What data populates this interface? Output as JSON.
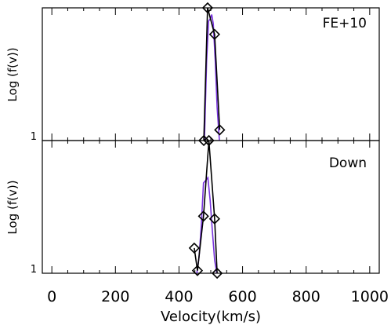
{
  "chart_data": [
    {
      "type": "line",
      "panel_label": "FE+10",
      "ylabel": "Log (f(v))",
      "y_tick_labels": [
        "1"
      ],
      "y_scale": "log",
      "xlim": [
        -30,
        1030
      ],
      "ylim_log10": [
        0,
        1
      ],
      "series": [
        {
          "color": "#7733dd",
          "x": [
            480,
            487,
            493,
            499,
            503,
            508,
            514,
            520,
            527
          ],
          "y_log10": [
            0,
            0.6,
            0.9,
            0.92,
            0.95,
            0.88,
            0.6,
            0.25,
            0
          ]
        },
        {
          "color": "#000000",
          "x": [
            478,
            490,
            512,
            528
          ],
          "y_log10": [
            0,
            1.0,
            0.8,
            0.08
          ],
          "markers": "diamond"
        }
      ]
    },
    {
      "type": "line",
      "panel_label": "Down",
      "ylabel": "Log (f(v))",
      "y_tick_labels": [
        "1"
      ],
      "y_scale": "log",
      "xlim": [
        -30,
        1030
      ],
      "ylim_log10": [
        0,
        1
      ],
      "series": [
        {
          "color": "#7733dd",
          "x": [
            456,
            463,
            470,
            477,
            484,
            491,
            498,
            505,
            512,
            519
          ],
          "y_log10": [
            0,
            0.12,
            0.35,
            0.68,
            0.7,
            0.72,
            0.55,
            0.32,
            0.1,
            0
          ]
        },
        {
          "color": "#000000",
          "x": [
            448,
            458,
            477,
            494,
            512,
            520
          ],
          "y_log10": [
            0.19,
            0.02,
            0.43,
            1.0,
            0.41,
            0
          ],
          "markers": "diamond"
        }
      ]
    }
  ],
  "x_axis": {
    "label": "Velocity(km/s)",
    "ticks": [
      0,
      200,
      400,
      600,
      800,
      1000
    ],
    "tick_labels": [
      "0",
      "200",
      "400",
      "600",
      "800",
      "1000"
    ],
    "minor_ticks": [
      50,
      100,
      150,
      250,
      300,
      350,
      450,
      500,
      550,
      650,
      700,
      750,
      850,
      900,
      950
    ]
  }
}
